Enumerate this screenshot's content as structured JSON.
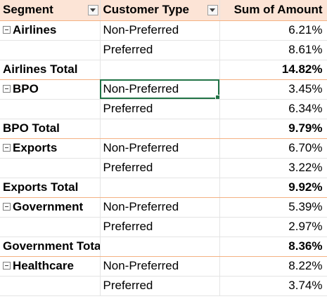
{
  "header": {
    "segment_label": "Segment",
    "customer_type_label": "Customer Type",
    "amount_label": "Sum of Amount"
  },
  "groups": [
    {
      "segment": "Airlines",
      "rows": [
        {
          "type": "Non-Preferred",
          "value": "6.21%"
        },
        {
          "type": "Preferred",
          "value": "8.61%"
        }
      ],
      "total_label": "Airlines Total",
      "total_value": "14.82%"
    },
    {
      "segment": "BPO",
      "rows": [
        {
          "type": "Non-Preferred",
          "value": "3.45%"
        },
        {
          "type": "Preferred",
          "value": "6.34%"
        }
      ],
      "total_label": "BPO Total",
      "total_value": "9.79%"
    },
    {
      "segment": "Exports",
      "rows": [
        {
          "type": "Non-Preferred",
          "value": "6.70%"
        },
        {
          "type": "Preferred",
          "value": "3.22%"
        }
      ],
      "total_label": "Exports Total",
      "total_value": "9.92%"
    },
    {
      "segment": "Government",
      "rows": [
        {
          "type": "Non-Preferred",
          "value": "5.39%"
        },
        {
          "type": "Preferred",
          "value": "2.97%"
        }
      ],
      "total_label": "Government Total",
      "total_value": "8.36%"
    },
    {
      "segment": "Healthcare",
      "rows": [
        {
          "type": "Non-Preferred",
          "value": "8.22%"
        },
        {
          "type": "Preferred",
          "value": "3.74%"
        }
      ]
    }
  ],
  "colors": {
    "header_fill": "#fce4d6",
    "total_border": "#f4b183",
    "selection": "#217346"
  }
}
